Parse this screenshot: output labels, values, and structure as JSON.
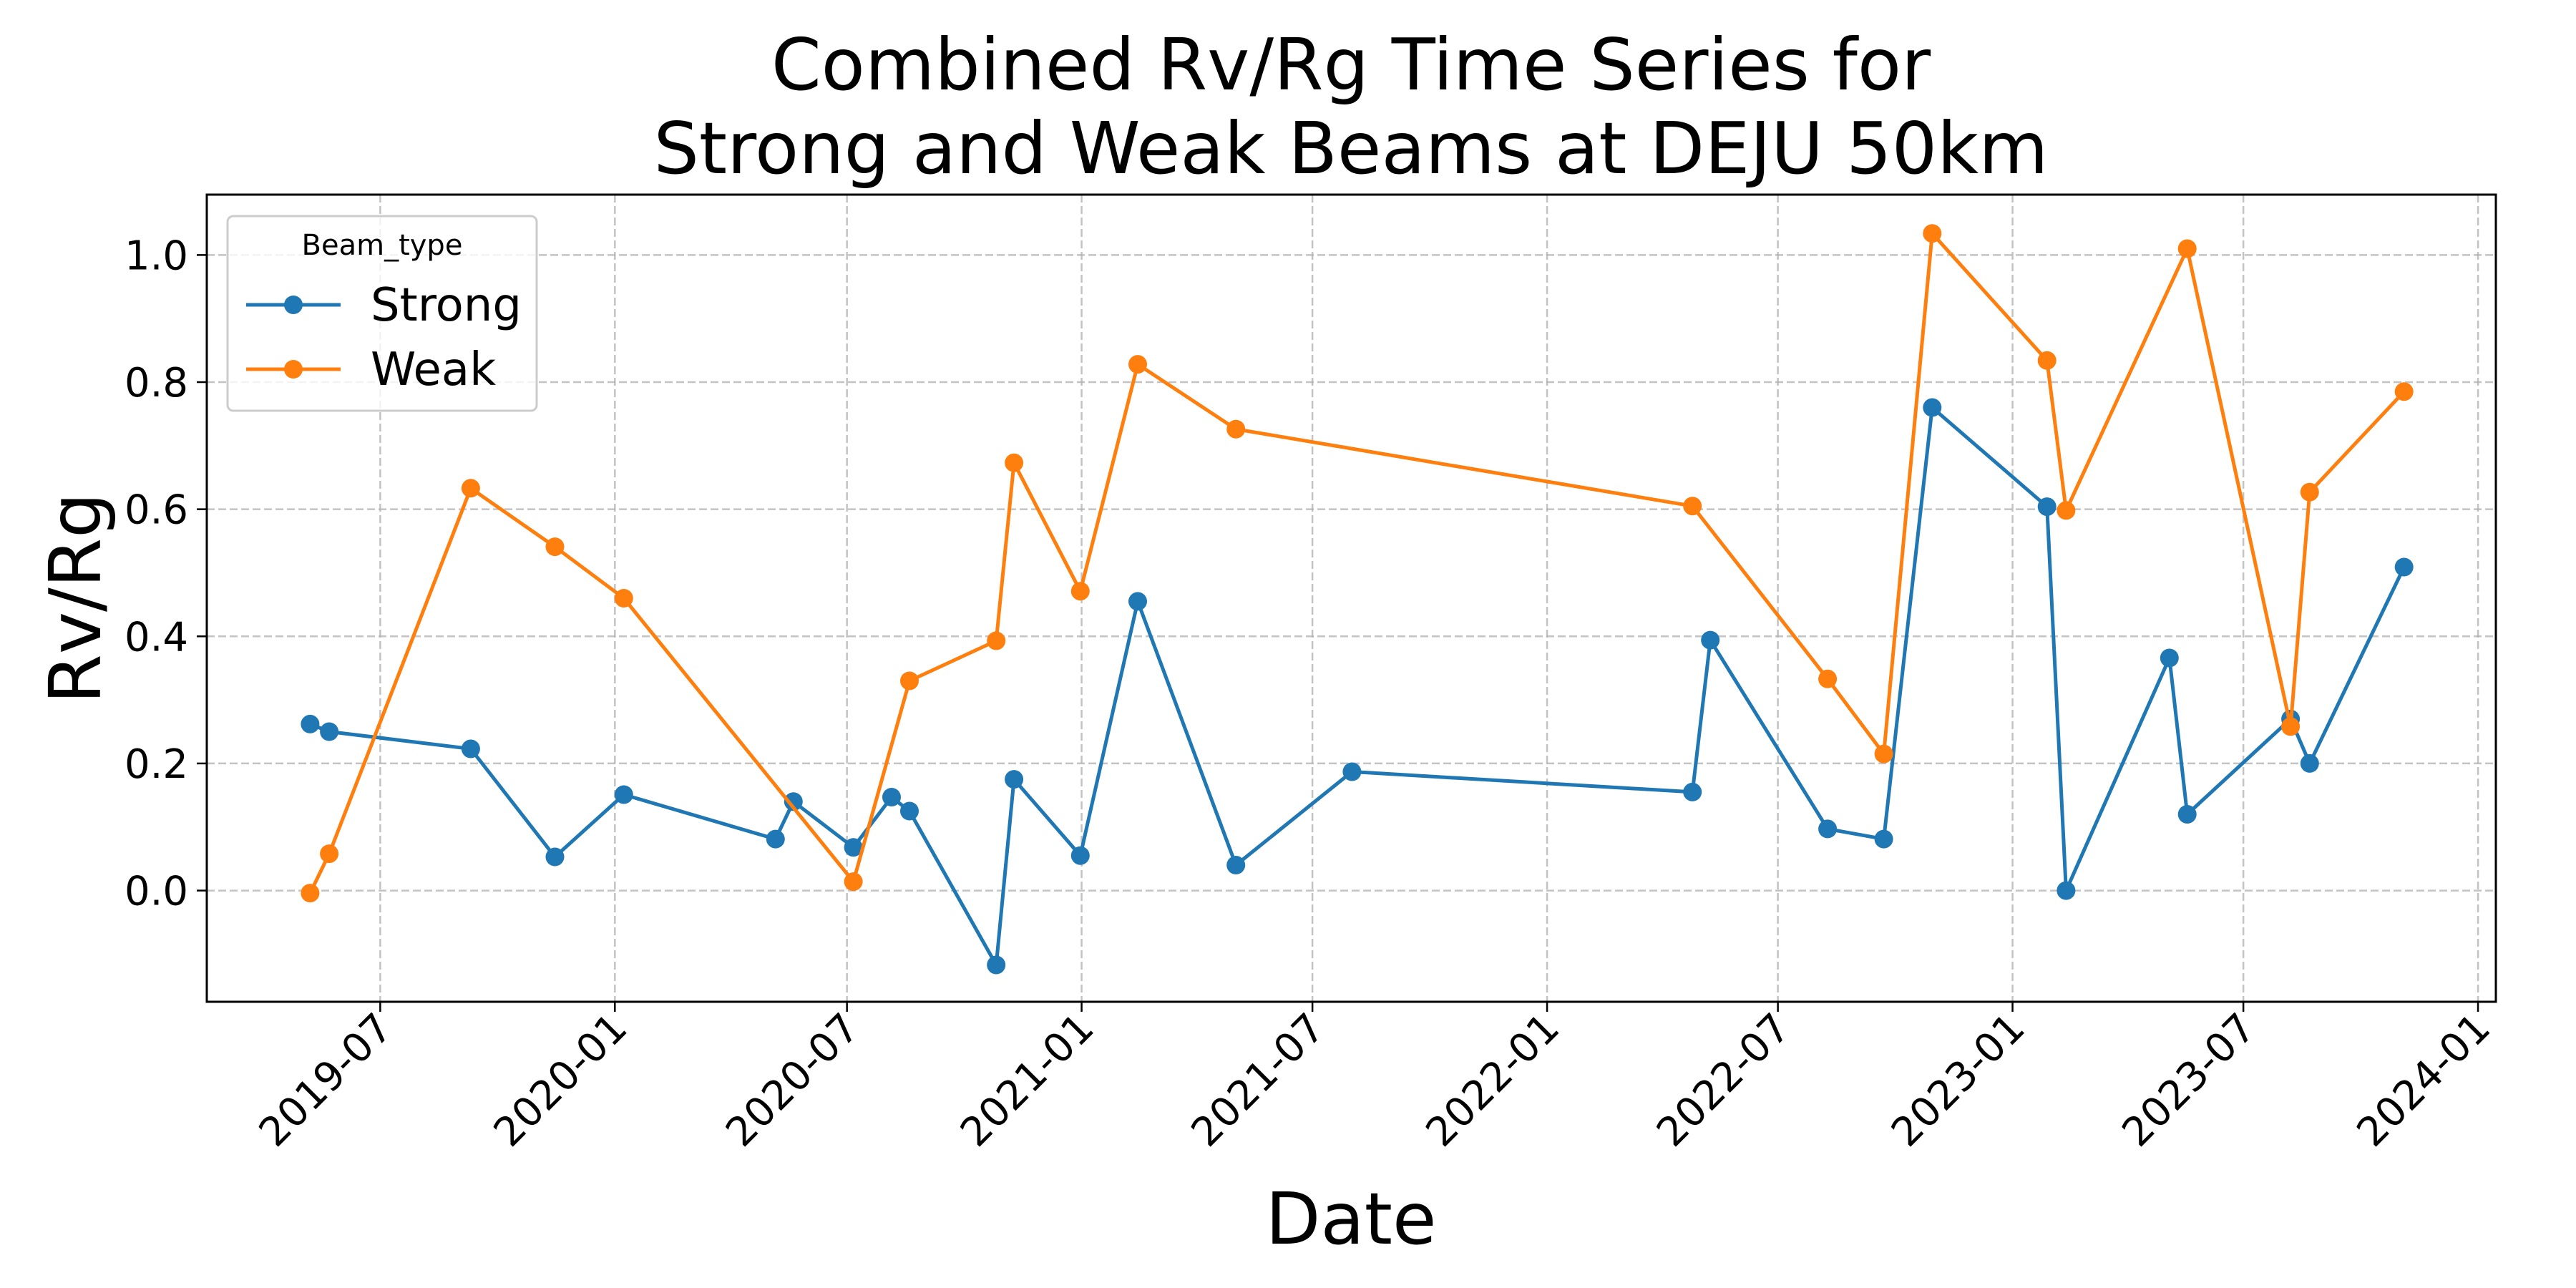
{
  "chart_data": {
    "type": "line",
    "title_lines": [
      "Combined Rv/Rg Time Series for",
      "Strong and Weak Beams at DEJU 50km"
    ],
    "xlabel": "Date",
    "ylabel": "Rv/Rg",
    "x_axis_type": "date",
    "xlim": [
      "2019-02-15",
      "2024-01-15"
    ],
    "ylim": [
      -0.175,
      1.095
    ],
    "x_ticks": [
      "2019-07",
      "2020-01",
      "2020-07",
      "2021-01",
      "2021-07",
      "2022-01",
      "2022-07",
      "2023-01",
      "2023-07",
      "2024-01"
    ],
    "y_ticks": [
      "0.0",
      "0.2",
      "0.4",
      "0.6",
      "0.8",
      "1.0"
    ],
    "grid": true,
    "legend": {
      "title": "Beam_type",
      "position": "top-left"
    },
    "series": [
      {
        "name": "Strong",
        "color": "#1f77b4",
        "points": [
          {
            "x": "2019-05-07",
            "y": 0.262
          },
          {
            "x": "2019-05-22",
            "y": 0.25
          },
          {
            "x": "2019-09-10",
            "y": 0.223
          },
          {
            "x": "2019-11-15",
            "y": 0.053
          },
          {
            "x": "2020-01-08",
            "y": 0.151
          },
          {
            "x": "2020-05-06",
            "y": 0.081
          },
          {
            "x": "2020-05-20",
            "y": 0.14
          },
          {
            "x": "2020-07-06",
            "y": 0.068
          },
          {
            "x": "2020-08-05",
            "y": 0.147
          },
          {
            "x": "2020-08-19",
            "y": 0.125
          },
          {
            "x": "2020-10-26",
            "y": -0.117
          },
          {
            "x": "2020-11-09",
            "y": 0.175
          },
          {
            "x": "2020-12-31",
            "y": 0.055
          },
          {
            "x": "2021-02-14",
            "y": 0.455
          },
          {
            "x": "2021-05-02",
            "y": 0.04
          },
          {
            "x": "2021-08-01",
            "y": 0.187
          },
          {
            "x": "2022-04-25",
            "y": 0.155
          },
          {
            "x": "2022-05-09",
            "y": 0.394
          },
          {
            "x": "2022-08-09",
            "y": 0.097
          },
          {
            "x": "2022-09-22",
            "y": 0.081
          },
          {
            "x": "2022-10-30",
            "y": 0.76
          },
          {
            "x": "2023-01-28",
            "y": 0.604
          },
          {
            "x": "2023-02-12",
            "y": 0.0
          },
          {
            "x": "2023-05-04",
            "y": 0.366
          },
          {
            "x": "2023-05-18",
            "y": 0.12
          },
          {
            "x": "2023-08-07",
            "y": 0.27
          },
          {
            "x": "2023-08-22",
            "y": 0.2
          },
          {
            "x": "2023-11-04",
            "y": 0.509
          }
        ]
      },
      {
        "name": "Weak",
        "color": "#ff7f0e",
        "points": [
          {
            "x": "2019-05-07",
            "y": -0.004
          },
          {
            "x": "2019-05-22",
            "y": 0.058
          },
          {
            "x": "2019-09-10",
            "y": 0.633
          },
          {
            "x": "2019-11-15",
            "y": 0.541
          },
          {
            "x": "2020-01-08",
            "y": 0.46
          },
          {
            "x": "2020-07-06",
            "y": 0.014
          },
          {
            "x": "2020-08-19",
            "y": 0.33
          },
          {
            "x": "2020-10-26",
            "y": 0.393
          },
          {
            "x": "2020-11-09",
            "y": 0.673
          },
          {
            "x": "2020-12-31",
            "y": 0.471
          },
          {
            "x": "2021-02-14",
            "y": 0.828
          },
          {
            "x": "2021-05-02",
            "y": 0.726
          },
          {
            "x": "2022-04-25",
            "y": 0.605
          },
          {
            "x": "2022-08-09",
            "y": 0.333
          },
          {
            "x": "2022-09-22",
            "y": 0.215
          },
          {
            "x": "2022-10-30",
            "y": 1.034
          },
          {
            "x": "2023-01-28",
            "y": 0.834
          },
          {
            "x": "2023-02-12",
            "y": 0.598
          },
          {
            "x": "2023-05-18",
            "y": 1.01
          },
          {
            "x": "2023-08-07",
            "y": 0.258
          },
          {
            "x": "2023-08-22",
            "y": 0.627
          },
          {
            "x": "2023-11-04",
            "y": 0.785
          }
        ]
      }
    ]
  }
}
